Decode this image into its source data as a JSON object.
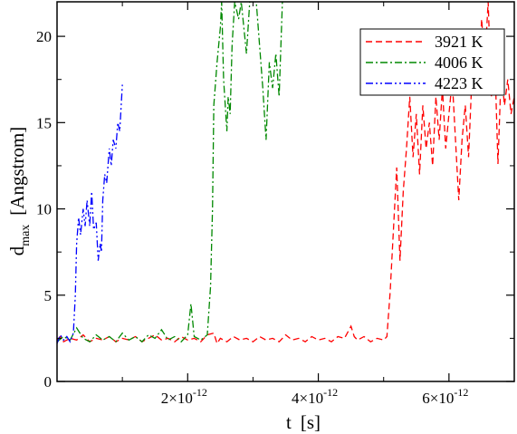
{
  "chart_data": {
    "type": "line",
    "xlabel": "t",
    "xlabel_unit": "[s]",
    "ylabel": "d",
    "ylabel_sub": "max",
    "ylabel_unit": "[Angstrom]",
    "xlim": [
      0,
      7e-12
    ],
    "ylim": [
      0,
      22
    ],
    "x_ticks": [
      {
        "value": 2e-12,
        "mantissa": "2×10",
        "exp": "-12"
      },
      {
        "value": 4e-12,
        "mantissa": "4×10",
        "exp": "-12"
      },
      {
        "value": 6e-12,
        "mantissa": "6×10",
        "exp": "-12"
      }
    ],
    "y_ticks": [
      {
        "value": 0,
        "label": "0"
      },
      {
        "value": 5,
        "label": "5"
      },
      {
        "value": 10,
        "label": "10"
      },
      {
        "value": 15,
        "label": "15"
      },
      {
        "value": 20,
        "label": "20"
      }
    ],
    "grid": false,
    "legend_position": "top-right",
    "series": [
      {
        "name": "3921 K",
        "color": "#ff0000",
        "dash": "dashed",
        "points": [
          [
            0.0,
            2.4
          ],
          [
            5e-14,
            2.6
          ],
          [
            1e-13,
            2.3
          ],
          [
            2e-13,
            2.5
          ],
          [
            3e-13,
            2.4
          ],
          [
            4e-13,
            2.7
          ],
          [
            5e-13,
            2.3
          ],
          [
            6e-13,
            2.5
          ],
          [
            7e-13,
            2.4
          ],
          [
            8e-13,
            2.6
          ],
          [
            9e-13,
            2.3
          ],
          [
            1e-12,
            2.5
          ],
          [
            1.1e-12,
            2.4
          ],
          [
            1.2e-12,
            2.6
          ],
          [
            1.3e-12,
            2.3
          ],
          [
            1.4e-12,
            2.5
          ],
          [
            1.5e-12,
            2.7
          ],
          [
            1.6e-12,
            2.4
          ],
          [
            1.7e-12,
            2.5
          ],
          [
            1.8e-12,
            2.3
          ],
          [
            1.9e-12,
            2.6
          ],
          [
            2e-12,
            2.4
          ],
          [
            2.1e-12,
            2.5
          ],
          [
            2.2e-12,
            2.3
          ],
          [
            2.3e-12,
            2.7
          ],
          [
            2.4e-12,
            2.8
          ],
          [
            2.45e-12,
            2.2
          ],
          [
            2.5e-12,
            2.5
          ],
          [
            2.6e-12,
            2.3
          ],
          [
            2.7e-12,
            2.6
          ],
          [
            2.8e-12,
            2.4
          ],
          [
            2.9e-12,
            2.5
          ],
          [
            3e-12,
            2.3
          ],
          [
            3.1e-12,
            2.6
          ],
          [
            3.2e-12,
            2.4
          ],
          [
            3.3e-12,
            2.5
          ],
          [
            3.4e-12,
            2.3
          ],
          [
            3.5e-12,
            2.7
          ],
          [
            3.6e-12,
            2.4
          ],
          [
            3.7e-12,
            2.5
          ],
          [
            3.8e-12,
            2.3
          ],
          [
            3.9e-12,
            2.6
          ],
          [
            4e-12,
            2.4
          ],
          [
            4.1e-12,
            2.5
          ],
          [
            4.2e-12,
            2.3
          ],
          [
            4.3e-12,
            2.6
          ],
          [
            4.4e-12,
            2.5
          ],
          [
            4.5e-12,
            3.2
          ],
          [
            4.55e-12,
            2.6
          ],
          [
            4.6e-12,
            2.4
          ],
          [
            4.7e-12,
            2.6
          ],
          [
            4.8e-12,
            2.3
          ],
          [
            4.9e-12,
            2.5
          ],
          [
            5e-12,
            2.4
          ],
          [
            5.05e-12,
            2.6
          ],
          [
            5.1e-12,
            5.2
          ],
          [
            5.15e-12,
            8.8
          ],
          [
            5.2e-12,
            12.4
          ],
          [
            5.25e-12,
            7.0
          ],
          [
            5.3e-12,
            11.0
          ],
          [
            5.35e-12,
            13.5
          ],
          [
            5.4e-12,
            16.5
          ],
          [
            5.45e-12,
            13.0
          ],
          [
            5.5e-12,
            15.5
          ],
          [
            5.55e-12,
            12.0
          ],
          [
            5.6e-12,
            16.0
          ],
          [
            5.65e-12,
            13.5
          ],
          [
            5.7e-12,
            15.0
          ],
          [
            5.75e-12,
            12.5
          ],
          [
            5.8e-12,
            16.5
          ],
          [
            5.85e-12,
            14.0
          ],
          [
            5.9e-12,
            17.0
          ],
          [
            5.95e-12,
            13.5
          ],
          [
            6e-12,
            15.5
          ],
          [
            6.05e-12,
            17.5
          ],
          [
            6.1e-12,
            14.0
          ],
          [
            6.15e-12,
            10.5
          ],
          [
            6.2e-12,
            14.0
          ],
          [
            6.25e-12,
            16.0
          ],
          [
            6.3e-12,
            13.0
          ],
          [
            6.35e-12,
            17.5
          ],
          [
            6.4e-12,
            19.5
          ],
          [
            6.45e-12,
            17.0
          ],
          [
            6.5e-12,
            21.0
          ],
          [
            6.55e-12,
            18.5
          ],
          [
            6.6e-12,
            22.0
          ],
          [
            6.65e-12,
            16.5
          ],
          [
            6.7e-12,
            19.0
          ],
          [
            6.75e-12,
            12.6
          ],
          [
            6.8e-12,
            18.0
          ],
          [
            6.85e-12,
            16.0
          ],
          [
            6.9e-12,
            17.5
          ],
          [
            6.95e-12,
            15.5
          ],
          [
            7e-12,
            16.5
          ]
        ]
      },
      {
        "name": "4006 K",
        "color": "#008800",
        "dash": "dashdot",
        "points": [
          [
            0.0,
            2.3
          ],
          [
            1e-13,
            2.6
          ],
          [
            2e-13,
            2.4
          ],
          [
            3e-13,
            3.1
          ],
          [
            4e-13,
            2.5
          ],
          [
            5e-13,
            2.3
          ],
          [
            6e-13,
            2.7
          ],
          [
            7e-13,
            2.4
          ],
          [
            8e-13,
            2.6
          ],
          [
            9e-13,
            2.3
          ],
          [
            1e-12,
            2.8
          ],
          [
            1.1e-12,
            2.4
          ],
          [
            1.2e-12,
            2.6
          ],
          [
            1.3e-12,
            2.3
          ],
          [
            1.4e-12,
            2.7
          ],
          [
            1.5e-12,
            2.5
          ],
          [
            1.6e-12,
            3.0
          ],
          [
            1.7e-12,
            2.4
          ],
          [
            1.8e-12,
            2.6
          ],
          [
            1.9e-12,
            2.3
          ],
          [
            2e-12,
            2.7
          ],
          [
            2.05e-12,
            4.5
          ],
          [
            2.1e-12,
            2.6
          ],
          [
            2.2e-12,
            2.4
          ],
          [
            2.3e-12,
            2.7
          ],
          [
            2.35e-12,
            5.5
          ],
          [
            2.38e-12,
            10.0
          ],
          [
            2.4e-12,
            16.0
          ],
          [
            2.45e-12,
            18.5
          ],
          [
            2.5e-12,
            20.5
          ],
          [
            2.52e-12,
            22.0
          ],
          [
            2.55e-12,
            17.5
          ],
          [
            2.6e-12,
            14.5
          ],
          [
            2.62e-12,
            16.5
          ],
          [
            2.65e-12,
            15.5
          ],
          [
            2.68e-12,
            19.5
          ],
          [
            2.72e-12,
            22.0
          ],
          [
            2.78e-12,
            21.0
          ],
          [
            2.82e-12,
            22.0
          ],
          [
            2.9e-12,
            19.0
          ],
          [
            2.95e-12,
            22.0
          ],
          [
            3.05e-12,
            22.0
          ],
          [
            3.15e-12,
            17.0
          ],
          [
            3.2e-12,
            14.0
          ],
          [
            3.25e-12,
            18.5
          ],
          [
            3.3e-12,
            17.0
          ],
          [
            3.35e-12,
            19.0
          ],
          [
            3.4e-12,
            16.5
          ],
          [
            3.45e-12,
            22.0
          ]
        ]
      },
      {
        "name": "4223 K",
        "color": "#0000ff",
        "dash": "dashdotdot",
        "points": [
          [
            0.0,
            2.2
          ],
          [
            5e-14,
            2.7
          ],
          [
            1e-13,
            2.4
          ],
          [
            1.5e-13,
            2.6
          ],
          [
            2e-13,
            2.3
          ],
          [
            2.5e-13,
            2.8
          ],
          [
            2.8e-13,
            5.0
          ],
          [
            3e-13,
            8.0
          ],
          [
            3.3e-13,
            9.5
          ],
          [
            3.6e-13,
            8.5
          ],
          [
            4e-13,
            10.0
          ],
          [
            4.3e-13,
            9.0
          ],
          [
            4.6e-13,
            10.5
          ],
          [
            5e-13,
            9.0
          ],
          [
            5.3e-13,
            11.0
          ],
          [
            5.6e-13,
            8.8
          ],
          [
            6e-13,
            9.2
          ],
          [
            6.3e-13,
            7.0
          ],
          [
            6.6e-13,
            8.0
          ],
          [
            6.8e-13,
            7.5
          ],
          [
            7e-13,
            10.5
          ],
          [
            7.3e-13,
            12.0
          ],
          [
            7.6e-13,
            11.5
          ],
          [
            8e-13,
            13.5
          ],
          [
            8.3e-13,
            12.5
          ],
          [
            8.6e-13,
            14.0
          ],
          [
            9e-13,
            13.5
          ],
          [
            9.3e-13,
            15.0
          ],
          [
            9.6e-13,
            14.5
          ],
          [
            1e-12,
            17.2
          ]
        ]
      }
    ]
  }
}
